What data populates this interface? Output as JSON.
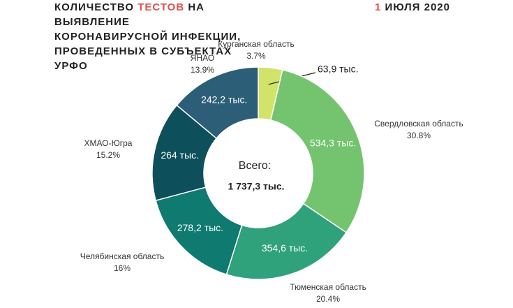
{
  "chart_data": {
    "type": "donut",
    "title_parts": [
      "КОЛИЧЕСТВО",
      "ТЕСТОВ",
      "НА ВЫЯВЛЕНИЕ КОРОНАВИРУСНОЙ ИНФЕКЦИИ, ПРОВЕДЕННЫХ В СУБЪЕКТАХ УРФО"
    ],
    "date": {
      "day": "1",
      "month_year": "ИЮЛЯ 2020"
    },
    "categories": [
      "Курганская область",
      "Свердловская область",
      "Тюменская область",
      "Челябинская область",
      "ХМАО-Югра",
      "ЯНАО"
    ],
    "values": [
      63.9,
      534.3,
      354.6,
      278.2,
      264,
      242.2
    ],
    "value_labels": [
      "63,9 тыс.",
      "534,3 тыс.",
      "354,6 тыс.",
      "278,2 тыс.",
      "264 тыс.",
      "242,2 тыс."
    ],
    "shares": [
      3.7,
      30.8,
      20.4,
      16,
      15.2,
      13.9
    ],
    "share_labels": [
      "3.7%",
      "30.8%",
      "20.4%",
      "16%",
      "15.2%",
      "13.9%"
    ],
    "colors": [
      "#d2e36a",
      "#74c46f",
      "#2fa27b",
      "#0e7a70",
      "#0d4f5a",
      "#2d5e78"
    ],
    "total_label": "Всего:",
    "total": 1737.3,
    "total_value_label": "1 737,3 тыс."
  }
}
